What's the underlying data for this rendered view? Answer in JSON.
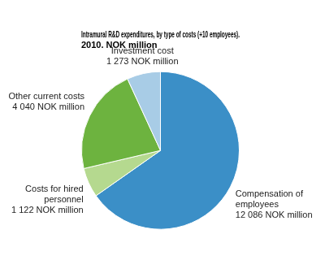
{
  "chart_data": {
    "type": "pie",
    "title": "Intramural R&D expenditures, by type of costs (+10 employees).\n2010. NOK million",
    "categories": [
      "Compensation of employees",
      "Costs for hired personnel",
      "Other current costs",
      "Investment cost"
    ],
    "values": [
      12086,
      1122,
      4040,
      1273
    ],
    "value_labels": [
      "12 086 NOK million",
      "1 122 NOK million",
      "4 040 NOK million",
      "1 273 NOK million"
    ],
    "colors": [
      "#3b8fc7",
      "#b5d98f",
      "#6db33f",
      "#a8cce6"
    ],
    "data_labels": true
  }
}
